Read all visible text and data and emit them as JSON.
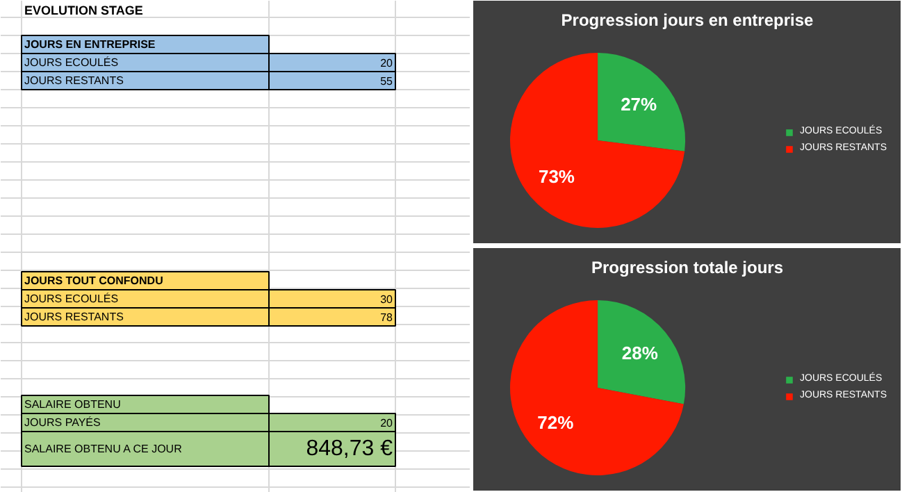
{
  "chart_data": [
    {
      "type": "other",
      "title": "EVOLUTION STAGE",
      "annotations": [
        "JOURS EN ENTREPRISE",
        "JOURS ECOULÉS",
        "20",
        "JOURS RESTANTS",
        "55",
        "JOURS TOUT CONFONDU",
        "JOURS ECOULÉS",
        "30",
        "JOURS RESTANTS",
        "78",
        "SALAIRE OBTENU",
        "JOURS PAYÉS",
        "20",
        "SALAIRE OBTENU A CE JOUR",
        "848,73 €"
      ]
    },
    {
      "type": "pie",
      "title": "Progression jours en entreprise",
      "categories": [
        "JOURS ECOULÉS",
        "JOURS RESTANTS"
      ],
      "values": [
        27,
        73
      ],
      "colors": [
        "#2bb04b",
        "#ff1a00"
      ],
      "value_labels": [
        "27%",
        "73%"
      ],
      "legend": "right"
    },
    {
      "type": "pie",
      "title": "Progression totale jours",
      "categories": [
        "JOURS ECOULÉS",
        "JOURS RESTANTS"
      ],
      "values": [
        28,
        72
      ],
      "colors": [
        "#2bb04b",
        "#ff1a00"
      ],
      "value_labels": [
        "28%",
        "72%"
      ],
      "legend": "right"
    }
  ]
}
